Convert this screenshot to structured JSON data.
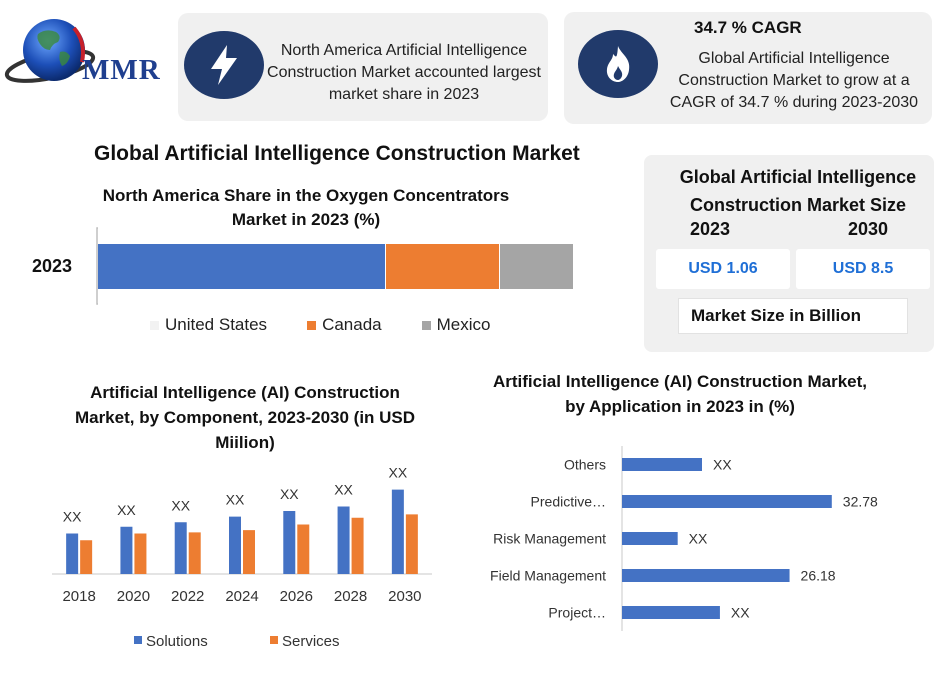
{
  "logo": {
    "text": "MMR"
  },
  "card1": {
    "icon": "lightning-icon",
    "text": "North America Artificial Intelligence Construction Market accounted largest market share in 2023"
  },
  "card2": {
    "icon": "flame-icon",
    "title": "34.7 % CAGR",
    "text": "Global Artificial Intelligence Construction Market to grow at a CAGR of 34.7 % during 2023-2030"
  },
  "main_title": "Global Artificial Intelligence Construction Market",
  "market_size": {
    "title": "Global Artificial Intelligence Construction Market Size",
    "year1": "2023",
    "year2": "2030",
    "value1": "USD 1.06",
    "value2": "USD 8.5",
    "unit": "Market Size in Billion"
  },
  "chart_data": [
    {
      "type": "bar",
      "orientation": "horizontal-stacked",
      "title": "North America Share in the Oxygen Concentrators Market in 2023 (%)",
      "categories": [
        "2023"
      ],
      "series": [
        {
          "name": "United States",
          "values": [
            60.5
          ],
          "color": "#4472c4"
        },
        {
          "name": "Canada",
          "values": [
            24.0
          ],
          "color": "#ed7d31"
        },
        {
          "name": "Mexico",
          "values": [
            15.5
          ],
          "color": "#a5a5a5"
        }
      ],
      "legend": "bottom"
    },
    {
      "type": "bar",
      "title": "Artificial Intelligence (AI) Construction Market, by Component, 2023-2030 (in USD Miilion)",
      "categories": [
        "2018",
        "2020",
        "2022",
        "2024",
        "2026",
        "2028",
        "2030"
      ],
      "series": [
        {
          "name": "Solutions",
          "values": [
            36,
            42,
            46,
            51,
            56,
            60,
            75
          ],
          "color": "#4472c4"
        },
        {
          "name": "Services",
          "values": [
            30,
            36,
            37,
            39,
            44,
            50,
            53
          ],
          "color": "#ed7d31"
        }
      ],
      "data_labels": [
        "XX",
        "XX",
        "XX",
        "XX",
        "XX",
        "XX",
        "XX"
      ],
      "ylim": [
        0,
        80
      ],
      "legend": "bottom"
    },
    {
      "type": "bar",
      "orientation": "horizontal",
      "title": "Artificial Intelligence (AI) Construction Market, by Application in 2023 in (%)",
      "categories": [
        "Others",
        "Predictive…",
        "Risk Management",
        "Field Management",
        "Project…"
      ],
      "values": [
        12.5,
        32.78,
        8.7,
        26.18,
        15.3
      ],
      "data_labels": [
        "XX",
        "32.78",
        "XX",
        "26.18",
        "XX"
      ],
      "xlim": [
        0,
        40
      ],
      "color": "#4472c4"
    }
  ]
}
